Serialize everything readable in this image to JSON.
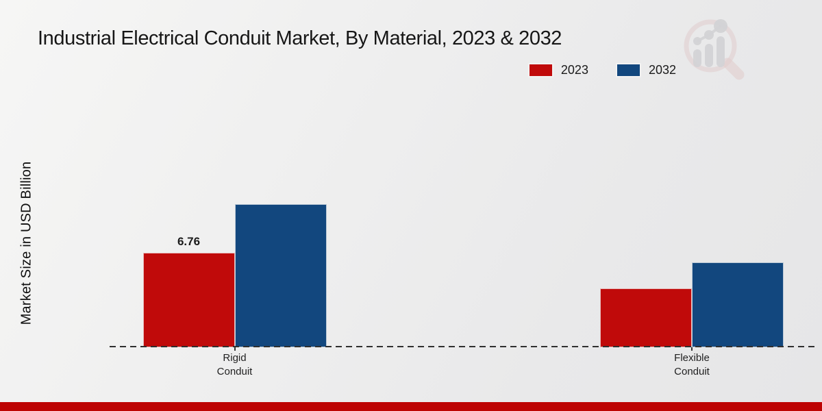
{
  "chart_data": {
    "type": "bar",
    "title": "Industrial Electrical Conduit Market, By Material, 2023 & 2032",
    "ylabel": "Market Size in USD Billion",
    "xlabel": "",
    "categories": [
      "Rigid\nConduit",
      "Flexible\nConduit"
    ],
    "series": [
      {
        "name": "2023",
        "color": "#c00a0a",
        "values": [
          6.76,
          4.2
        ]
      },
      {
        "name": "2032",
        "color": "#12477e",
        "values": [
          10.25,
          6.1
        ]
      }
    ],
    "data_labels": [
      {
        "series_index": 0,
        "category_index": 0,
        "text": "6.76"
      }
    ],
    "ylim": [
      0,
      12
    ],
    "grid": false,
    "axis_ticks_visible": false,
    "baseline_style": "dashed",
    "legend_position": "top-right"
  },
  "branding": {
    "logo_icon": "magnifier-bar-chart-logo",
    "footer_strip_color": "#bd0303",
    "logo_ring_color": "#ddbcbc",
    "logo_bar_color": "#c5c5c9"
  }
}
